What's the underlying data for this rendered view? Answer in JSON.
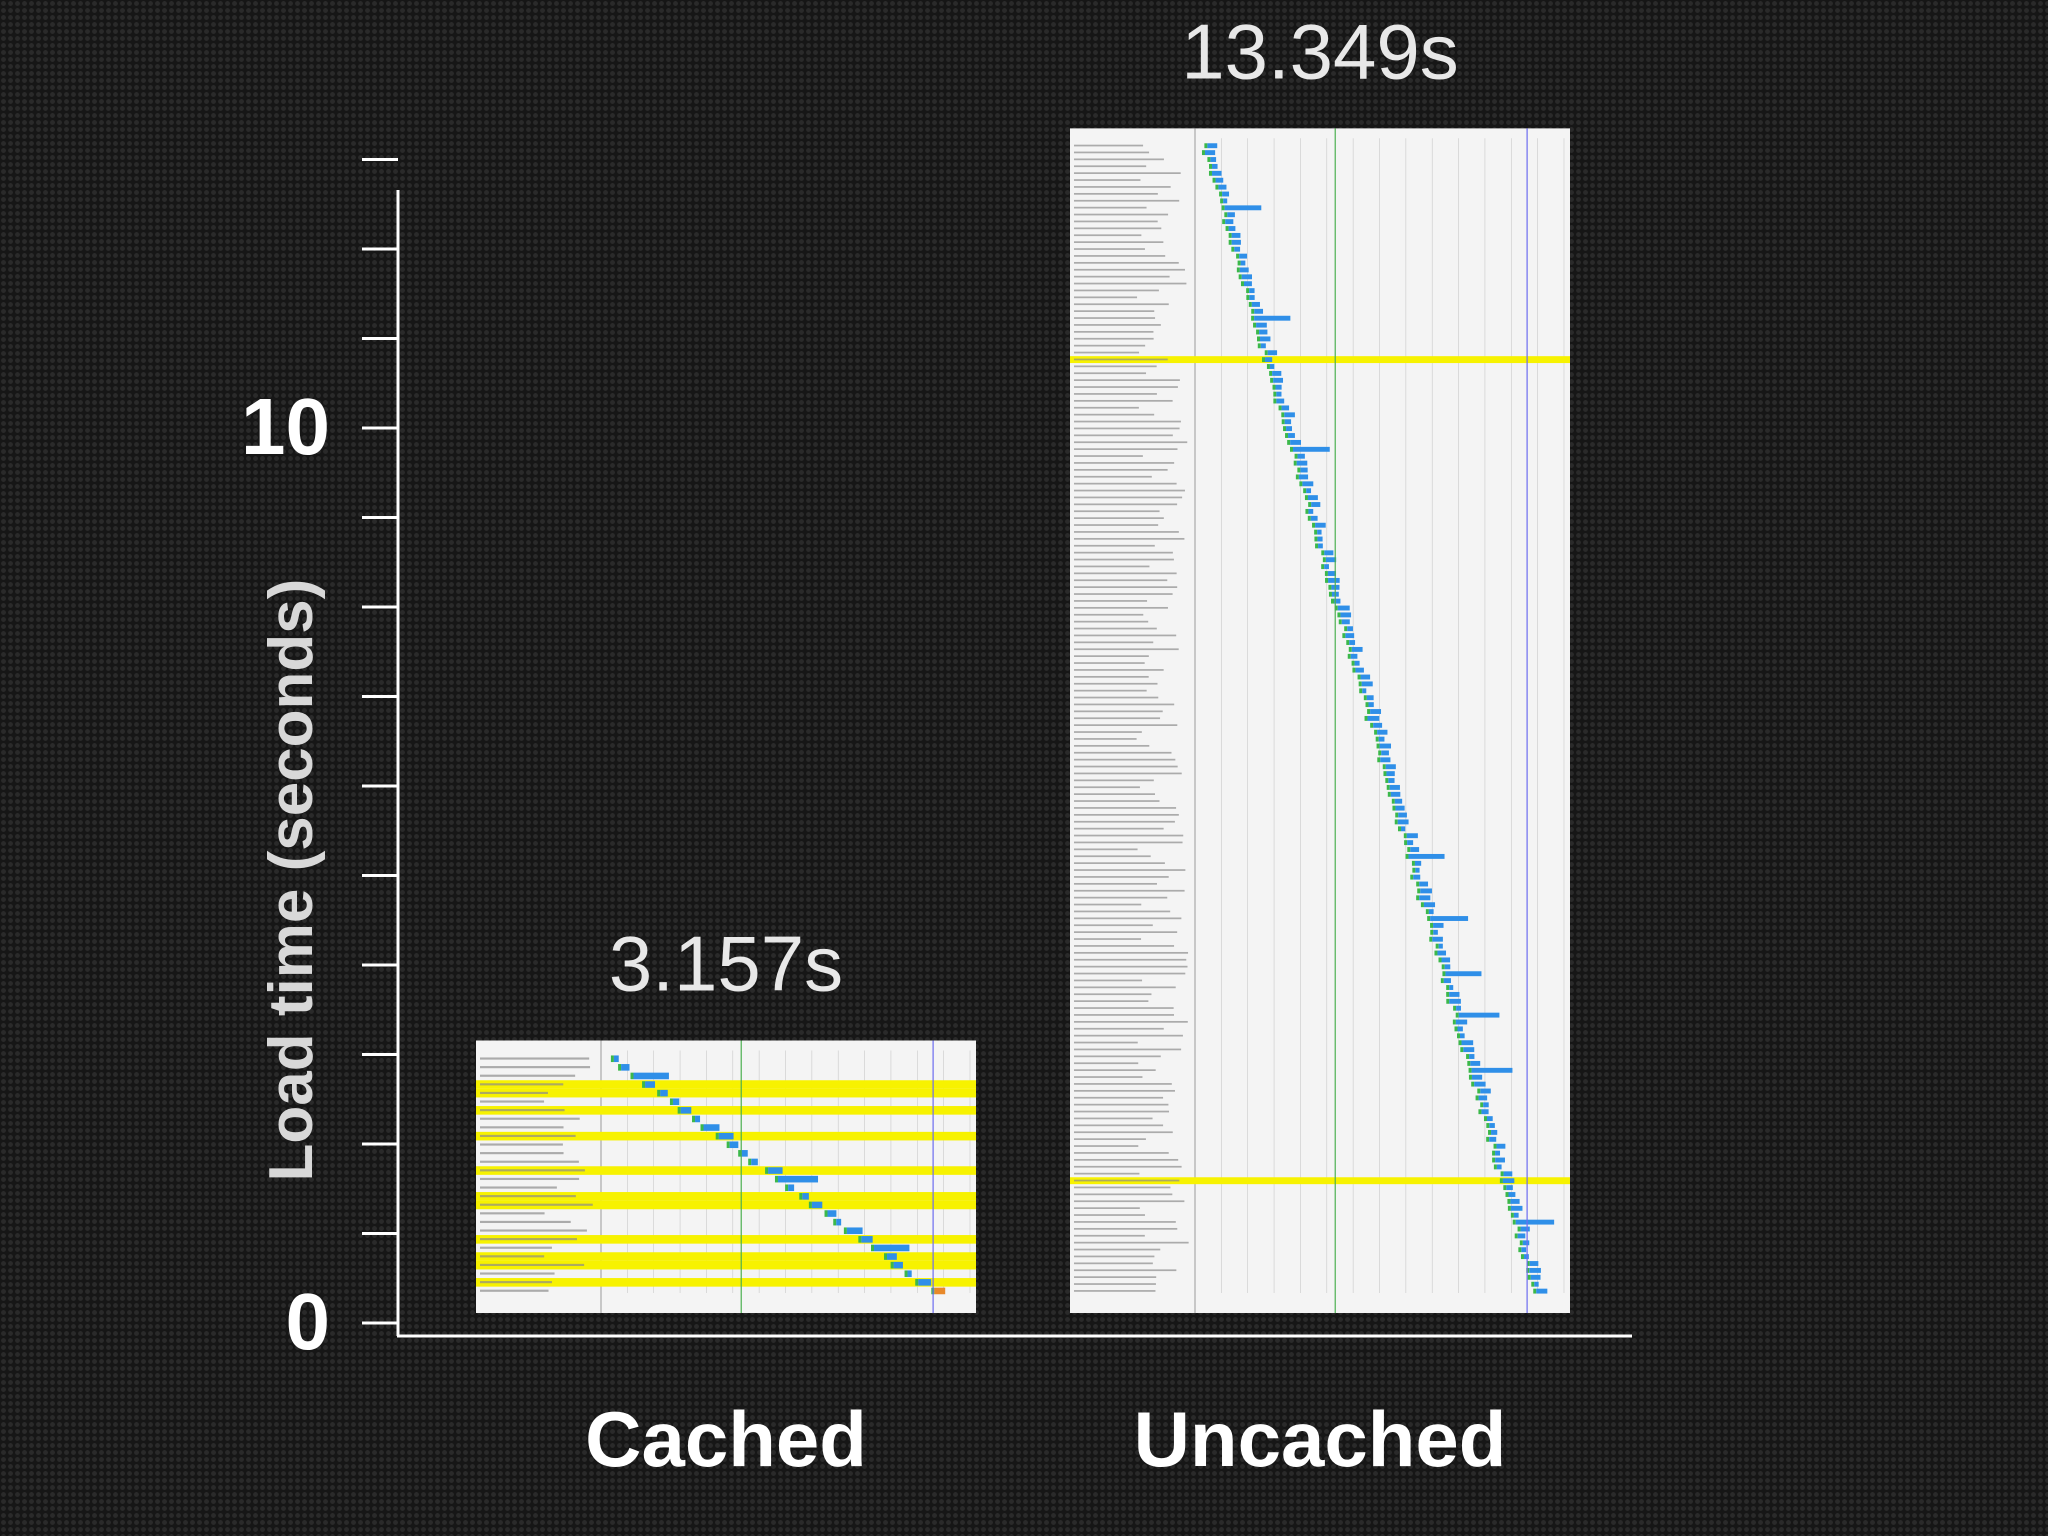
{
  "chart_data": {
    "type": "bar",
    "title": "",
    "ylabel": "Load time (seconds)",
    "xlabel": "",
    "ylim": [
      0,
      14.5
    ],
    "y_ticks_minor": [
      0,
      1,
      2,
      3,
      4,
      5,
      6,
      7,
      8,
      9,
      10,
      11,
      12,
      13
    ],
    "y_tick_labels": [
      {
        "value": 0,
        "label": "0"
      },
      {
        "value": 10,
        "label": "10"
      }
    ],
    "categories": [
      "Cached",
      "Uncached"
    ],
    "values": [
      3.157,
      13.349
    ],
    "value_labels": [
      "3.157s",
      "13.349s"
    ],
    "bar_fill": "waterfall-screenshot",
    "colors": {
      "axis": "#ffffff",
      "text": "#ffffff",
      "value_text": "#e8e8e8",
      "waterfall_bg": "#f4f4f4",
      "highlight": "#f7f200",
      "bar_blue": "#2f8fe8",
      "bar_green": "#3bb84a",
      "bar_orange": "#e8892a",
      "grid": "#c9c9c9"
    }
  }
}
